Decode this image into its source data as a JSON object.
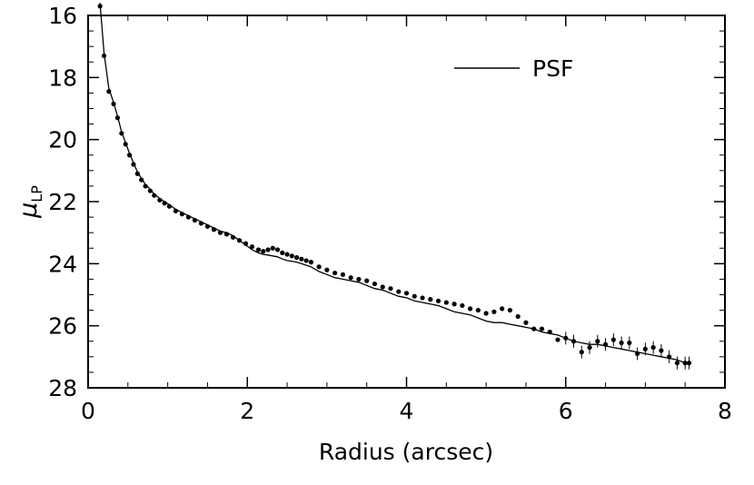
{
  "chart_data": {
    "type": "scatter",
    "title": "",
    "xlabel": "Radius (arcsec)",
    "ylabel": "μ",
    "ylabel_sub": "LP",
    "xlim": [
      0,
      8
    ],
    "ylim": [
      28,
      16
    ],
    "y_inverted": true,
    "grid": false,
    "legend_position": "top-right",
    "x_ticks": [
      0,
      2,
      4,
      6,
      8
    ],
    "y_ticks": [
      16,
      18,
      20,
      22,
      24,
      26,
      28
    ],
    "x_tick_labels": [
      "0",
      "2",
      "4",
      "6",
      "8"
    ],
    "y_tick_labels": [
      "16",
      "18",
      "20",
      "22",
      "24",
      "26",
      "28"
    ],
    "series": [
      {
        "name": "",
        "kind": "points",
        "color": "#000000",
        "x": [
          0.15,
          0.2,
          0.26,
          0.32,
          0.37,
          0.42,
          0.47,
          0.52,
          0.57,
          0.62,
          0.67,
          0.72,
          0.78,
          0.83,
          0.9,
          0.96,
          1.02,
          1.1,
          1.18,
          1.26,
          1.34,
          1.42,
          1.5,
          1.58,
          1.66,
          1.74,
          1.82,
          1.9,
          1.98,
          2.06,
          2.14,
          2.2,
          2.26,
          2.32,
          2.38,
          2.44,
          2.5,
          2.56,
          2.62,
          2.68,
          2.74,
          2.8,
          2.9,
          3.0,
          3.1,
          3.2,
          3.3,
          3.4,
          3.5,
          3.6,
          3.7,
          3.8,
          3.9,
          4.0,
          4.1,
          4.2,
          4.3,
          4.4,
          4.5,
          4.6,
          4.7,
          4.8,
          4.9,
          5.0,
          5.1,
          5.2,
          5.3,
          5.4,
          5.5,
          5.6,
          5.7,
          5.8,
          5.9,
          6.0,
          6.1,
          6.2,
          6.3,
          6.4,
          6.5,
          6.6,
          6.7,
          6.8,
          6.9,
          7.0,
          7.1,
          7.2,
          7.3,
          7.4,
          7.5,
          7.55
        ],
        "y": [
          15.7,
          17.3,
          18.45,
          18.85,
          19.3,
          19.8,
          20.15,
          20.5,
          20.8,
          21.1,
          21.3,
          21.5,
          21.65,
          21.8,
          21.95,
          22.05,
          22.15,
          22.3,
          22.4,
          22.5,
          22.6,
          22.7,
          22.8,
          22.9,
          23.0,
          23.05,
          23.15,
          23.25,
          23.35,
          23.45,
          23.55,
          23.6,
          23.55,
          23.5,
          23.55,
          23.65,
          23.7,
          23.75,
          23.8,
          23.85,
          23.9,
          23.95,
          24.1,
          24.2,
          24.3,
          24.35,
          24.45,
          24.5,
          24.55,
          24.65,
          24.75,
          24.8,
          24.9,
          24.95,
          25.05,
          25.1,
          25.15,
          25.2,
          25.25,
          25.3,
          25.35,
          25.45,
          25.5,
          25.6,
          25.55,
          25.45,
          25.5,
          25.7,
          25.9,
          26.1,
          26.1,
          26.2,
          26.45,
          26.4,
          26.5,
          26.85,
          26.7,
          26.5,
          26.6,
          26.45,
          26.55,
          26.55,
          26.9,
          26.75,
          26.7,
          26.8,
          27.0,
          27.2,
          27.2,
          27.2
        ]
      },
      {
        "name": "PSF",
        "kind": "line",
        "color": "#000000",
        "x": [
          0.15,
          0.2,
          0.26,
          0.32,
          0.37,
          0.42,
          0.47,
          0.52,
          0.57,
          0.62,
          0.67,
          0.72,
          0.78,
          0.83,
          0.9,
          0.96,
          1.02,
          1.1,
          1.18,
          1.26,
          1.34,
          1.42,
          1.5,
          1.58,
          1.66,
          1.74,
          1.82,
          1.9,
          1.98,
          2.06,
          2.14,
          2.2,
          2.26,
          2.32,
          2.38,
          2.44,
          2.5,
          2.56,
          2.62,
          2.68,
          2.74,
          2.8,
          2.9,
          3.0,
          3.1,
          3.2,
          3.3,
          3.4,
          3.5,
          3.6,
          3.7,
          3.8,
          3.9,
          4.0,
          4.1,
          4.2,
          4.3,
          4.4,
          4.5,
          4.6,
          4.7,
          4.8,
          4.9,
          5.0,
          5.1,
          5.2,
          5.3,
          5.4,
          5.5,
          5.6,
          5.7,
          5.8,
          5.9,
          6.0,
          6.1,
          6.2,
          6.3,
          6.4,
          6.5,
          6.6,
          6.7,
          6.8,
          6.9,
          7.0,
          7.1,
          7.2,
          7.3,
          7.4,
          7.5,
          7.55
        ],
        "y": [
          15.6,
          17.2,
          18.35,
          18.8,
          19.25,
          19.75,
          20.1,
          20.45,
          20.75,
          21.05,
          21.25,
          21.45,
          21.6,
          21.75,
          21.9,
          22.0,
          22.1,
          22.25,
          22.35,
          22.45,
          22.55,
          22.65,
          22.75,
          22.85,
          22.95,
          23.0,
          23.1,
          23.25,
          23.4,
          23.55,
          23.65,
          23.7,
          23.72,
          23.75,
          23.78,
          23.85,
          23.9,
          23.92,
          23.95,
          24.0,
          24.05,
          24.1,
          24.25,
          24.35,
          24.45,
          24.5,
          24.55,
          24.6,
          24.7,
          24.8,
          24.85,
          24.95,
          25.05,
          25.1,
          25.2,
          25.25,
          25.3,
          25.35,
          25.45,
          25.55,
          25.6,
          25.65,
          25.75,
          25.85,
          25.9,
          25.9,
          25.95,
          26.0,
          26.05,
          26.1,
          26.2,
          26.25,
          26.3,
          26.4,
          26.5,
          26.55,
          26.6,
          26.6,
          26.65,
          26.7,
          26.75,
          26.8,
          26.85,
          26.9,
          26.95,
          27.0,
          27.05,
          27.1,
          27.2,
          27.25
        ]
      }
    ]
  }
}
